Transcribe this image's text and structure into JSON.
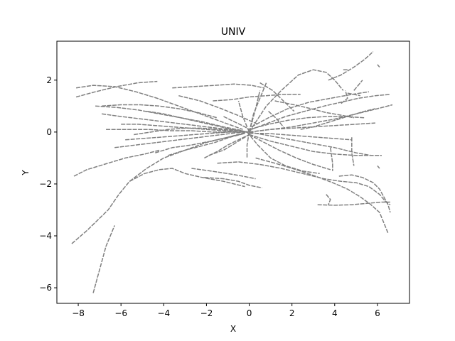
{
  "chart_data": {
    "type": "line",
    "title": "UNIV",
    "xlabel": "X",
    "ylabel": "Y",
    "xlim": [
      -9,
      7.5
    ],
    "ylim": [
      -6.6,
      3.5
    ],
    "x_ticks": [
      -8,
      -6,
      -4,
      -2,
      0,
      2,
      4,
      6
    ],
    "y_ticks": [
      -6,
      -4,
      -2,
      0,
      2
    ],
    "x_tick_labels": [
      "−8",
      "−6",
      "−4",
      "−2",
      "0",
      "2",
      "4",
      "6"
    ],
    "y_tick_labels": [
      "−6",
      "−4",
      "−2",
      "0",
      "2"
    ],
    "grid": false,
    "legend": "none",
    "line_color": "#808080",
    "series": [
      {
        "x": [
          -8.3,
          -7.6,
          -6.6,
          -6.1,
          -5.6,
          -4.9,
          -4.2,
          -3.6,
          -3.0,
          -2.2,
          -1.2,
          -0.2
        ],
        "y": [
          -4.3,
          -3.8,
          -3.0,
          -2.4,
          -1.9,
          -1.6,
          -1.45,
          -1.4,
          -1.6,
          -1.75,
          -1.9,
          -2.1
        ]
      },
      {
        "x": [
          -7.3,
          -7.0,
          -6.7,
          -6.3
        ],
        "y": [
          -6.2,
          -5.3,
          -4.4,
          -3.6
        ]
      },
      {
        "x": [
          -8.2,
          -7.6,
          -6.8,
          -5.8,
          -4.9,
          -4.2
        ],
        "y": [
          -1.7,
          -1.45,
          -1.25,
          -1.0,
          -0.85,
          -0.7
        ]
      },
      {
        "x": [
          -8.1,
          -7.3,
          -6.3,
          -5.3,
          -4.3,
          -3.3,
          -2.3,
          -1.3,
          -0.3
        ],
        "y": [
          1.7,
          1.8,
          1.75,
          1.55,
          1.3,
          1.0,
          0.7,
          0.4,
          0.1
        ]
      },
      {
        "x": [
          -8.1,
          -7.2,
          -6.2,
          -5.2,
          -4.3
        ],
        "y": [
          1.35,
          1.55,
          1.75,
          1.9,
          1.95
        ]
      },
      {
        "x": [
          -7.2,
          -6.2,
          -5.2,
          -4.2,
          -3.2,
          -2.2,
          -1.2,
          -0.3
        ],
        "y": [
          1.0,
          0.95,
          0.85,
          0.7,
          0.55,
          0.4,
          0.2,
          0.05
        ]
      },
      {
        "x": [
          -6.9,
          -6.0,
          -5.0,
          -4.0,
          -3.0,
          -2.0,
          -1.0,
          0.0
        ],
        "y": [
          0.7,
          0.6,
          0.5,
          0.4,
          0.3,
          0.2,
          0.1,
          0.0
        ]
      },
      {
        "x": [
          -6.7,
          -5.7,
          -4.7,
          -3.7,
          -2.7,
          -1.7,
          -0.7,
          0.2
        ],
        "y": [
          0.1,
          0.1,
          0.1,
          0.05,
          0.05,
          0.0,
          0.0,
          0.0
        ]
      },
      {
        "x": [
          -6.3,
          -5.3,
          -4.3,
          -3.3,
          -2.3,
          -1.3,
          -0.3
        ],
        "y": [
          -0.6,
          -0.5,
          -0.4,
          -0.3,
          -0.2,
          -0.1,
          0.0
        ]
      },
      {
        "x": [
          -5.6,
          -4.8,
          -4.0,
          -3.0,
          -2.0,
          -1.0,
          -0.1
        ],
        "y": [
          -1.9,
          -1.4,
          -1.0,
          -0.7,
          -0.4,
          -0.2,
          0.0
        ]
      },
      {
        "x": [
          -4.4,
          -3.6,
          -2.7,
          -1.8,
          -1.0,
          -0.2
        ],
        "y": [
          -0.8,
          -0.6,
          -0.5,
          -0.35,
          -0.2,
          -0.05
        ]
      },
      {
        "x": [
          -2.1,
          -1.5,
          -1.0,
          -0.5,
          0.0
        ],
        "y": [
          -1.0,
          -0.75,
          -0.5,
          -0.3,
          -0.1
        ]
      },
      {
        "x": [
          -2.1,
          -1.2,
          -0.5,
          0.0,
          0.6
        ],
        "y": [
          -1.75,
          -1.8,
          -1.9,
          -2.05,
          -2.15
        ]
      },
      {
        "x": [
          -3.6,
          -2.6,
          -1.6,
          -0.7,
          0.1,
          0.7
        ],
        "y": [
          1.7,
          1.75,
          1.8,
          1.85,
          1.8,
          1.7
        ]
      },
      {
        "x": [
          -1.7,
          -0.8,
          0.0,
          0.8,
          1.6,
          2.4
        ],
        "y": [
          1.2,
          1.25,
          1.35,
          1.4,
          1.45,
          1.45
        ]
      },
      {
        "x": [
          -1.2,
          -0.7,
          -0.2,
          0.1
        ],
        "y": [
          0.6,
          0.4,
          0.2,
          0.05
        ]
      },
      {
        "x": [
          0.0,
          -0.3,
          -0.5
        ],
        "y": [
          0.0,
          0.6,
          1.2
        ]
      },
      {
        "x": [
          0.0,
          0.2,
          0.5,
          0.8
        ],
        "y": [
          0.0,
          0.7,
          1.3,
          1.9
        ]
      },
      {
        "x": [
          0.0,
          0.3,
          0.5
        ],
        "y": [
          0.0,
          0.9,
          1.6
        ]
      },
      {
        "x": [
          0.0,
          -0.1,
          -0.1
        ],
        "y": [
          0.0,
          -0.5,
          -1.0
        ]
      },
      {
        "x": [
          0.0,
          0.8,
          1.5,
          2.3,
          3.0,
          3.6,
          4.0,
          4.4
        ],
        "y": [
          0.0,
          1.0,
          1.6,
          2.2,
          2.4,
          2.3,
          2.0,
          1.6
        ]
      },
      {
        "x": [
          0.1,
          0.9,
          1.7,
          2.6,
          3.5,
          4.3,
          5.1,
          5.9,
          6.6
        ],
        "y": [
          0.1,
          0.35,
          0.6,
          0.8,
          1.0,
          1.15,
          1.3,
          1.4,
          1.45
        ]
      },
      {
        "x": [
          0.0,
          1.0,
          2.0,
          3.0,
          4.0,
          5.0,
          6.0,
          6.7
        ],
        "y": [
          0.0,
          0.1,
          0.2,
          0.35,
          0.5,
          0.7,
          0.9,
          1.05
        ]
      },
      {
        "x": [
          0.0,
          1.0,
          2.0,
          3.0,
          4.0,
          5.0,
          5.9
        ],
        "y": [
          0.0,
          0.1,
          0.15,
          0.2,
          0.25,
          0.3,
          0.35
        ]
      },
      {
        "x": [
          0.0,
          1.0,
          2.0,
          3.0,
          4.0,
          5.0,
          5.7
        ],
        "y": [
          0.0,
          -0.15,
          -0.3,
          -0.45,
          -0.6,
          -0.8,
          -0.9
        ]
      },
      {
        "x": [
          0.0,
          1.0,
          2.0,
          3.0,
          4.0,
          5.0,
          6.2
        ],
        "y": [
          -0.1,
          -0.35,
          -0.55,
          -0.75,
          -0.85,
          -0.9,
          -0.9
        ]
      },
      {
        "x": [
          -1.5,
          -0.5,
          0.5,
          1.5,
          2.5,
          3.5,
          4.3,
          5.0,
          5.6,
          6.1,
          6.4,
          6.6
        ],
        "y": [
          -1.2,
          -1.15,
          -1.25,
          -1.4,
          -1.6,
          -1.8,
          -1.9,
          -1.95,
          -2.1,
          -2.4,
          -2.7,
          -2.8
        ]
      },
      {
        "x": [
          0.3,
          1.2,
          2.2,
          3.1,
          3.9,
          4.6,
          5.2,
          5.7,
          6.1,
          6.3,
          6.5
        ],
        "y": [
          -1.0,
          -1.2,
          -1.45,
          -1.7,
          -1.95,
          -2.2,
          -2.5,
          -2.8,
          -3.1,
          -3.5,
          -3.9
        ]
      },
      {
        "x": [
          4.2,
          4.8,
          5.3,
          5.8,
          6.1,
          6.3,
          6.5,
          6.6
        ],
        "y": [
          -1.7,
          -1.65,
          -1.75,
          -1.95,
          -2.2,
          -2.5,
          -2.8,
          -3.1
        ]
      },
      {
        "x": [
          3.7,
          4.3,
          4.9,
          5.4,
          5.8
        ],
        "y": [
          2.0,
          2.2,
          2.5,
          2.8,
          3.1
        ]
      },
      {
        "x": [
          3.8,
          3.9,
          3.9
        ],
        "y": [
          -0.6,
          -1.2,
          -1.5
        ]
      },
      {
        "x": [
          4.8,
          4.8,
          4.9
        ],
        "y": [
          -0.2,
          -0.8,
          -1.3
        ]
      },
      {
        "x": [
          4.6,
          5.2
        ],
        "y": [
          1.5,
          1.4
        ]
      },
      {
        "x": [
          4.9,
          5.1,
          5.3
        ],
        "y": [
          1.6,
          1.8,
          2.0
        ]
      },
      {
        "x": [
          3.2,
          4.0,
          4.8,
          5.5,
          6.2,
          6.6
        ],
        "y": [
          -2.8,
          -2.82,
          -2.8,
          -2.75,
          -2.7,
          -2.7
        ]
      },
      {
        "x": [
          3.6,
          3.8,
          3.7
        ],
        "y": [
          -2.4,
          -2.6,
          -2.8
        ]
      },
      {
        "x": [
          4.3,
          4.6,
          4.5
        ],
        "y": [
          1.1,
          1.3,
          1.6
        ]
      },
      {
        "x": [
          4.4,
          4.6
        ],
        "y": [
          2.4,
          2.4
        ]
      },
      {
        "x": [
          6.0,
          6.1
        ],
        "y": [
          2.6,
          2.5
        ]
      },
      {
        "x": [
          6.0,
          6.1
        ],
        "y": [
          -1.3,
          -1.4
        ]
      },
      {
        "x": [
          -4.8,
          -4.0,
          -3.2,
          -2.4,
          -1.6,
          -0.8,
          0.0
        ],
        "y": [
          0.8,
          0.7,
          0.55,
          0.4,
          0.25,
          0.1,
          0.0
        ]
      },
      {
        "x": [
          -5.8,
          -5.0,
          -4.2,
          -3.4,
          -2.6,
          -1.8,
          -1.0,
          -0.2
        ],
        "y": [
          -0.3,
          -0.25,
          -0.2,
          -0.15,
          -0.1,
          -0.05,
          0.0,
          0.0
        ]
      },
      {
        "x": [
          -3.8,
          -3.0,
          -2.3,
          -1.6,
          -0.9,
          -0.2
        ],
        "y": [
          -0.9,
          -0.7,
          -0.55,
          -0.4,
          -0.2,
          -0.05
        ]
      },
      {
        "x": [
          -6.0,
          -5.2,
          -4.4,
          -3.6,
          -2.8,
          -2.0,
          -1.2,
          -0.4
        ],
        "y": [
          0.3,
          0.3,
          0.25,
          0.2,
          0.15,
          0.1,
          0.05,
          0.0
        ]
      },
      {
        "x": [
          -2.7,
          -1.8,
          -1.0,
          -0.3,
          0.3
        ],
        "y": [
          -1.4,
          -1.5,
          -1.6,
          -1.7,
          -1.8
        ]
      },
      {
        "x": [
          0.1,
          0.9,
          1.8,
          2.8,
          3.8,
          4.8,
          5.6
        ],
        "y": [
          0.2,
          0.55,
          0.9,
          1.15,
          1.3,
          1.45,
          1.55
        ]
      },
      {
        "x": [
          0.0,
          0.9,
          1.8,
          2.7,
          3.6,
          4.5,
          5.4
        ],
        "y": [
          0.1,
          0.3,
          0.45,
          0.55,
          0.6,
          0.6,
          0.55
        ]
      },
      {
        "x": [
          0.0,
          0.8,
          1.6,
          2.4,
          3.2,
          4.0,
          4.8
        ],
        "y": [
          -0.05,
          -0.05,
          -0.1,
          -0.15,
          -0.2,
          -0.25,
          -0.3
        ]
      },
      {
        "x": [
          0.0,
          0.7,
          1.4,
          2.2,
          3.0,
          3.8
        ],
        "y": [
          -0.1,
          -0.4,
          -0.7,
          -1.0,
          -1.25,
          -1.45
        ]
      },
      {
        "x": [
          -0.1,
          0.4,
          1.0,
          1.7,
          2.5,
          3.3
        ],
        "y": [
          0.0,
          -0.5,
          -1.0,
          -1.3,
          -1.5,
          -1.6
        ]
      },
      {
        "x": [
          1.2,
          2.1,
          2.9,
          3.6,
          4.3,
          4.9
        ],
        "y": [
          1.2,
          1.05,
          0.9,
          0.75,
          0.65,
          0.55
        ]
      },
      {
        "x": [
          2.4,
          3.0,
          3.6,
          4.2,
          4.8,
          5.4,
          5.9
        ],
        "y": [
          0.1,
          0.2,
          0.35,
          0.5,
          0.65,
          0.8,
          0.9
        ]
      },
      {
        "x": [
          -3.3,
          -2.3,
          -1.3,
          -0.4,
          0.4
        ],
        "y": [
          1.4,
          1.2,
          0.9,
          0.6,
          0.3
        ]
      },
      {
        "x": [
          -6.9,
          -6.0,
          -5.1,
          -4.2,
          -3.3,
          -2.4,
          -1.5
        ],
        "y": [
          1.0,
          1.05,
          1.05,
          1.0,
          0.9,
          0.75,
          0.55
        ]
      },
      {
        "x": [
          -5.4,
          -4.6,
          -3.8,
          -3.0,
          -2.2,
          -1.4,
          -0.6
        ],
        "y": [
          -0.1,
          0.0,
          0.1,
          0.15,
          0.15,
          0.1,
          0.05
        ]
      },
      {
        "x": [
          -1.9,
          -1.2,
          -0.6,
          0.0
        ],
        "y": [
          -0.9,
          -0.7,
          -0.4,
          -0.1
        ]
      },
      {
        "x": [
          0.5,
          1.1,
          1.6,
          2.1
        ],
        "y": [
          1.9,
          1.6,
          1.2,
          0.8
        ]
      },
      {
        "x": [
          0.9,
          1.3,
          1.6
        ],
        "y": [
          0.8,
          0.5,
          0.2
        ]
      }
    ]
  }
}
